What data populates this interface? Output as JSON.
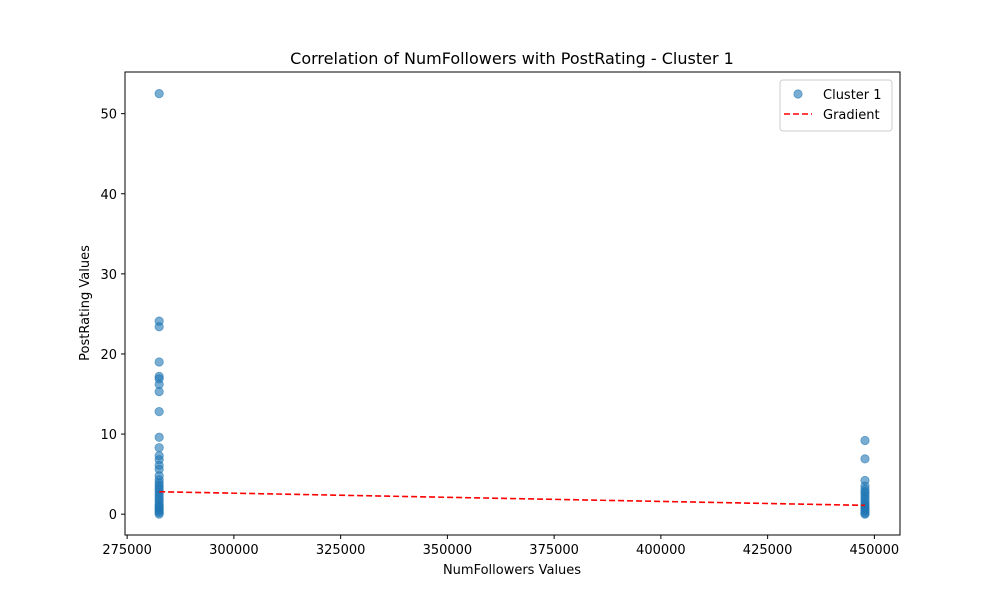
{
  "chart_data": {
    "type": "scatter",
    "title": "Correlation of NumFollowers with PostRating - Cluster 1",
    "xlabel": "NumFollowers Values",
    "ylabel": "PostRating Values",
    "xlim": [
      274500,
      456000
    ],
    "ylim": [
      -2.6,
      55.2
    ],
    "xticks": [
      275000,
      300000,
      325000,
      350000,
      375000,
      400000,
      425000,
      450000
    ],
    "yticks": [
      0,
      10,
      20,
      30,
      40,
      50
    ],
    "grid": false,
    "legend_position": "top-right",
    "series": [
      {
        "name": "Cluster 1",
        "kind": "scatter",
        "color": "#1f77b4",
        "points": [
          [
            282500,
            52.5
          ],
          [
            282500,
            24.1
          ],
          [
            282500,
            23.4
          ],
          [
            282500,
            19.0
          ],
          [
            282500,
            17.2
          ],
          [
            282500,
            16.9
          ],
          [
            282500,
            16.2
          ],
          [
            282500,
            15.3
          ],
          [
            282500,
            12.8
          ],
          [
            282500,
            9.6
          ],
          [
            282500,
            8.3
          ],
          [
            282500,
            7.3
          ],
          [
            282500,
            6.8
          ],
          [
            282500,
            6.1
          ],
          [
            282500,
            5.6
          ],
          [
            282500,
            4.8
          ],
          [
            282500,
            4.3
          ],
          [
            282500,
            3.9
          ],
          [
            282500,
            3.6
          ],
          [
            282500,
            3.3
          ],
          [
            282500,
            3.0
          ],
          [
            282500,
            2.7
          ],
          [
            282500,
            2.4
          ],
          [
            282500,
            2.1
          ],
          [
            282500,
            1.8
          ],
          [
            282500,
            1.5
          ],
          [
            282500,
            1.2
          ],
          [
            282500,
            1.0
          ],
          [
            282500,
            0.8
          ],
          [
            282500,
            0.6
          ],
          [
            282500,
            0.4
          ],
          [
            282500,
            0.2
          ],
          [
            282500,
            0.0
          ],
          [
            447800,
            9.2
          ],
          [
            447800,
            6.9
          ],
          [
            447800,
            4.2
          ],
          [
            447800,
            3.5
          ],
          [
            447800,
            3.1
          ],
          [
            447800,
            2.8
          ],
          [
            447800,
            2.5
          ],
          [
            447800,
            2.2
          ],
          [
            447800,
            1.9
          ],
          [
            447800,
            1.6
          ],
          [
            447800,
            1.3
          ],
          [
            447800,
            1.1
          ],
          [
            447800,
            0.9
          ],
          [
            447800,
            0.7
          ],
          [
            447800,
            0.5
          ],
          [
            447800,
            0.3
          ],
          [
            447800,
            0.1
          ],
          [
            447800,
            0.0
          ]
        ]
      },
      {
        "name": "Gradient",
        "kind": "line",
        "style": "dashed",
        "color": "#ff0000",
        "points": [
          [
            282500,
            2.8
          ],
          [
            447800,
            1.1
          ]
        ]
      }
    ]
  }
}
